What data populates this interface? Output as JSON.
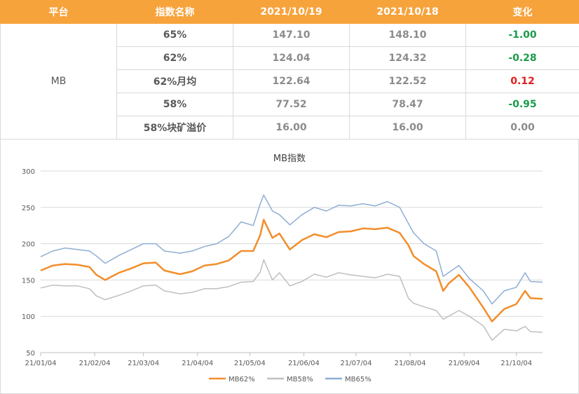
{
  "table": {
    "headers": [
      "平台",
      "指数名称",
      "2021/10/19",
      "2021/10/18",
      "变化"
    ],
    "platform": "MB",
    "rows": [
      {
        "name": "65%",
        "v1": "147.10",
        "v2": "148.10",
        "change": "-1.00",
        "trend": "down"
      },
      {
        "name": "62%",
        "v1": "124.04",
        "v2": "124.32",
        "change": "-0.28",
        "trend": "down"
      },
      {
        "name": "62%月均",
        "v1": "122.64",
        "v2": "122.52",
        "change": "0.12",
        "trend": "up"
      },
      {
        "name": "58%",
        "v1": "77.52",
        "v2": "78.47",
        "change": "-0.95",
        "trend": "down"
      },
      {
        "name": "58%块矿溢价",
        "v1": "16.00",
        "v2": "16.00",
        "change": "0.00",
        "trend": "flat"
      }
    ],
    "colors": {
      "header_bg": "#f7a33c",
      "down": "#1a9b4a",
      "up": "#e01e1e"
    }
  },
  "chart_data": {
    "type": "line",
    "title": "MB指数",
    "xlabel": "",
    "ylabel": "",
    "ylim": [
      50,
      300
    ],
    "yticks": [
      50,
      100,
      150,
      200,
      250,
      300
    ],
    "xlim": [
      "21/01/04",
      "21/10/19"
    ],
    "xticks": [
      "21/01/04",
      "21/02/04",
      "21/03/04",
      "21/04/04",
      "21/05/04",
      "21/06/04",
      "21/07/04",
      "21/08/04",
      "21/09/04",
      "21/10/04"
    ],
    "grid": true,
    "legend_position": "bottom",
    "series": [
      {
        "name": "MB62%",
        "color": "#f28e2b",
        "points": [
          [
            "21/01/04",
            163
          ],
          [
            "21/01/11",
            170
          ],
          [
            "21/01/18",
            172
          ],
          [
            "21/01/25",
            171
          ],
          [
            "21/02/01",
            168
          ],
          [
            "21/02/05",
            157
          ],
          [
            "21/02/10",
            150
          ],
          [
            "21/02/18",
            160
          ],
          [
            "21/02/25",
            166
          ],
          [
            "21/03/04",
            173
          ],
          [
            "21/03/11",
            174
          ],
          [
            "21/03/16",
            163
          ],
          [
            "21/03/25",
            158
          ],
          [
            "21/04/01",
            162
          ],
          [
            "21/04/08",
            170
          ],
          [
            "21/04/15",
            172
          ],
          [
            "21/04/22",
            177
          ],
          [
            "21/04/29",
            190
          ],
          [
            "21/05/06",
            190
          ],
          [
            "21/05/10",
            212
          ],
          [
            "21/05/12",
            233
          ],
          [
            "21/05/17",
            208
          ],
          [
            "21/05/21",
            214
          ],
          [
            "21/05/27",
            192
          ],
          [
            "21/06/03",
            205
          ],
          [
            "21/06/10",
            213
          ],
          [
            "21/06/17",
            209
          ],
          [
            "21/06/24",
            216
          ],
          [
            "21/07/01",
            217
          ],
          [
            "21/07/08",
            221
          ],
          [
            "21/07/15",
            220
          ],
          [
            "21/07/22",
            222
          ],
          [
            "21/07/29",
            215
          ],
          [
            "21/08/03",
            198
          ],
          [
            "21/08/06",
            183
          ],
          [
            "21/08/12",
            172
          ],
          [
            "21/08/19",
            162
          ],
          [
            "21/08/23",
            135
          ],
          [
            "21/08/26",
            145
          ],
          [
            "21/09/01",
            157
          ],
          [
            "21/09/07",
            140
          ],
          [
            "21/09/15",
            112
          ],
          [
            "21/09/20",
            93
          ],
          [
            "21/09/27",
            110
          ],
          [
            "21/10/04",
            117
          ],
          [
            "21/10/09",
            135
          ],
          [
            "21/10/12",
            125
          ],
          [
            "21/10/19",
            124
          ]
        ]
      },
      {
        "name": "MB58%",
        "color": "#bfbfbf",
        "points": [
          [
            "21/01/04",
            139
          ],
          [
            "21/01/11",
            143
          ],
          [
            "21/01/18",
            142
          ],
          [
            "21/01/25",
            142
          ],
          [
            "21/02/01",
            138
          ],
          [
            "21/02/05",
            128
          ],
          [
            "21/02/10",
            123
          ],
          [
            "21/02/18",
            129
          ],
          [
            "21/02/25",
            135
          ],
          [
            "21/03/04",
            142
          ],
          [
            "21/03/11",
            143
          ],
          [
            "21/03/16",
            135
          ],
          [
            "21/03/25",
            131
          ],
          [
            "21/04/01",
            133
          ],
          [
            "21/04/08",
            138
          ],
          [
            "21/04/15",
            138
          ],
          [
            "21/04/22",
            141
          ],
          [
            "21/04/29",
            147
          ],
          [
            "21/05/06",
            148
          ],
          [
            "21/05/10",
            161
          ],
          [
            "21/05/12",
            178
          ],
          [
            "21/05/17",
            150
          ],
          [
            "21/05/21",
            160
          ],
          [
            "21/05/27",
            142
          ],
          [
            "21/06/03",
            148
          ],
          [
            "21/06/10",
            158
          ],
          [
            "21/06/17",
            154
          ],
          [
            "21/06/24",
            160
          ],
          [
            "21/07/01",
            157
          ],
          [
            "21/07/08",
            155
          ],
          [
            "21/07/15",
            153
          ],
          [
            "21/07/22",
            158
          ],
          [
            "21/07/29",
            155
          ],
          [
            "21/08/03",
            125
          ],
          [
            "21/08/06",
            118
          ],
          [
            "21/08/12",
            113
          ],
          [
            "21/08/19",
            108
          ],
          [
            "21/08/23",
            96
          ],
          [
            "21/08/26",
            100
          ],
          [
            "21/09/01",
            108
          ],
          [
            "21/09/07",
            100
          ],
          [
            "21/09/15",
            87
          ],
          [
            "21/09/20",
            67
          ],
          [
            "21/09/27",
            82
          ],
          [
            "21/10/04",
            80
          ],
          [
            "21/10/09",
            86
          ],
          [
            "21/10/12",
            79
          ],
          [
            "21/10/19",
            78
          ]
        ]
      },
      {
        "name": "MB65%",
        "color": "#8eaed4",
        "points": [
          [
            "21/01/04",
            182
          ],
          [
            "21/01/11",
            190
          ],
          [
            "21/01/18",
            194
          ],
          [
            "21/01/25",
            192
          ],
          [
            "21/02/01",
            190
          ],
          [
            "21/02/05",
            183
          ],
          [
            "21/02/10",
            173
          ],
          [
            "21/02/18",
            184
          ],
          [
            "21/02/25",
            192
          ],
          [
            "21/03/04",
            200
          ],
          [
            "21/03/11",
            200
          ],
          [
            "21/03/16",
            190
          ],
          [
            "21/03/25",
            187
          ],
          [
            "21/04/01",
            190
          ],
          [
            "21/04/08",
            196
          ],
          [
            "21/04/15",
            200
          ],
          [
            "21/04/22",
            210
          ],
          [
            "21/04/29",
            230
          ],
          [
            "21/05/06",
            225
          ],
          [
            "21/05/10",
            255
          ],
          [
            "21/05/12",
            267
          ],
          [
            "21/05/17",
            245
          ],
          [
            "21/05/21",
            240
          ],
          [
            "21/05/27",
            226
          ],
          [
            "21/06/03",
            240
          ],
          [
            "21/06/10",
            250
          ],
          [
            "21/06/17",
            245
          ],
          [
            "21/06/24",
            253
          ],
          [
            "21/07/01",
            252
          ],
          [
            "21/07/08",
            255
          ],
          [
            "21/07/15",
            252
          ],
          [
            "21/07/22",
            258
          ],
          [
            "21/07/29",
            250
          ],
          [
            "21/08/03",
            228
          ],
          [
            "21/08/06",
            215
          ],
          [
            "21/08/12",
            200
          ],
          [
            "21/08/19",
            190
          ],
          [
            "21/08/23",
            155
          ],
          [
            "21/08/26",
            160
          ],
          [
            "21/09/01",
            170
          ],
          [
            "21/09/07",
            152
          ],
          [
            "21/09/15",
            135
          ],
          [
            "21/09/20",
            117
          ],
          [
            "21/09/27",
            135
          ],
          [
            "21/10/04",
            140
          ],
          [
            "21/10/09",
            160
          ],
          [
            "21/10/12",
            148
          ],
          [
            "21/10/19",
            147
          ]
        ]
      }
    ]
  }
}
